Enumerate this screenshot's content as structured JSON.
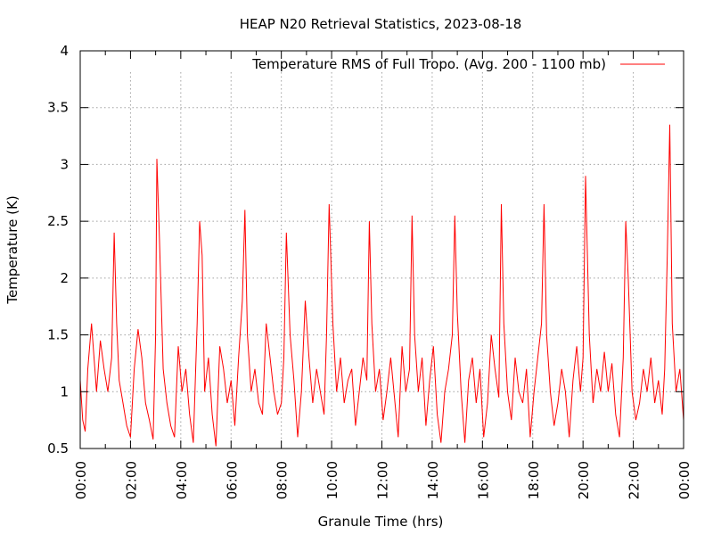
{
  "chart_data": {
    "type": "line",
    "title": "HEAP N20 Retrieval Statistics, 2023-08-18",
    "xlabel": "Granule Time (hrs)",
    "ylabel": "Temperature (K)",
    "xlim": [
      0,
      24
    ],
    "ylim": [
      0.5,
      4
    ],
    "x_ticks": [
      "00:00",
      "02:00",
      "04:00",
      "06:00",
      "08:00",
      "10:00",
      "12:00",
      "14:00",
      "16:00",
      "18:00",
      "20:00",
      "22:00",
      "00:00"
    ],
    "y_ticks": [
      "0.5",
      "1",
      "1.5",
      "2",
      "2.5",
      "3",
      "3.5",
      "4"
    ],
    "grid": true,
    "legend_position": "top-right",
    "series": [
      {
        "name": "Temperature RMS of Full Tropo. (Avg. 200 - 1100 mb)",
        "color": "#ff0000",
        "x": [
          0.0,
          0.1,
          0.2,
          0.3,
          0.45,
          0.55,
          0.65,
          0.8,
          0.95,
          1.1,
          1.25,
          1.35,
          1.45,
          1.55,
          1.7,
          1.85,
          2.0,
          2.15,
          2.3,
          2.45,
          2.6,
          2.75,
          2.9,
          3.0,
          3.05,
          3.15,
          3.3,
          3.45,
          3.6,
          3.75,
          3.9,
          4.05,
          4.2,
          4.35,
          4.5,
          4.65,
          4.75,
          4.85,
          4.95,
          5.1,
          5.25,
          5.4,
          5.55,
          5.7,
          5.85,
          6.0,
          6.15,
          6.3,
          6.45,
          6.55,
          6.65,
          6.8,
          6.95,
          7.1,
          7.25,
          7.4,
          7.55,
          7.7,
          7.85,
          8.0,
          8.1,
          8.2,
          8.35,
          8.5,
          8.65,
          8.8,
          8.95,
          9.1,
          9.25,
          9.4,
          9.55,
          9.7,
          9.8,
          9.9,
          10.05,
          10.2,
          10.35,
          10.5,
          10.65,
          10.8,
          10.95,
          11.1,
          11.25,
          11.4,
          11.5,
          11.6,
          11.75,
          11.9,
          12.05,
          12.2,
          12.35,
          12.5,
          12.65,
          12.8,
          12.95,
          13.1,
          13.2,
          13.3,
          13.45,
          13.6,
          13.75,
          13.9,
          14.05,
          14.2,
          14.35,
          14.5,
          14.65,
          14.8,
          14.9,
          15.0,
          15.15,
          15.3,
          15.45,
          15.6,
          15.75,
          15.9,
          16.05,
          16.2,
          16.35,
          16.5,
          16.65,
          16.75,
          16.85,
          17.0,
          17.15,
          17.3,
          17.45,
          17.6,
          17.75,
          17.9,
          18.05,
          18.2,
          18.35,
          18.45,
          18.55,
          18.7,
          18.85,
          19.0,
          19.15,
          19.3,
          19.45,
          19.6,
          19.75,
          19.9,
          20.0,
          20.1,
          20.25,
          20.4,
          20.55,
          20.7,
          20.85,
          21.0,
          21.15,
          21.3,
          21.45,
          21.6,
          21.7,
          21.8,
          21.95,
          22.1,
          22.25,
          22.4,
          22.55,
          22.7,
          22.85,
          23.0,
          23.15,
          23.25,
          23.35,
          23.45,
          23.55,
          23.7,
          23.85,
          24.0
        ],
        "values": [
          1.1,
          0.75,
          0.65,
          1.2,
          1.6,
          1.3,
          1.0,
          1.45,
          1.2,
          1.0,
          1.3,
          2.4,
          1.6,
          1.1,
          0.9,
          0.7,
          0.6,
          1.2,
          1.55,
          1.3,
          0.9,
          0.75,
          0.58,
          1.5,
          3.05,
          2.35,
          1.2,
          0.9,
          0.7,
          0.6,
          1.4,
          1.0,
          1.2,
          0.8,
          0.55,
          1.6,
          2.5,
          2.2,
          1.0,
          1.3,
          0.8,
          0.52,
          1.4,
          1.2,
          0.9,
          1.1,
          0.7,
          1.3,
          1.8,
          2.6,
          1.5,
          1.0,
          1.2,
          0.9,
          0.8,
          1.6,
          1.3,
          1.0,
          0.8,
          0.9,
          1.3,
          2.4,
          1.5,
          1.1,
          0.6,
          1.0,
          1.8,
          1.3,
          0.9,
          1.2,
          1.0,
          0.8,
          1.5,
          2.65,
          1.6,
          1.0,
          1.3,
          0.9,
          1.1,
          1.2,
          0.7,
          1.0,
          1.3,
          1.1,
          2.5,
          1.6,
          1.0,
          1.2,
          0.75,
          1.0,
          1.3,
          0.95,
          0.6,
          1.4,
          1.0,
          1.2,
          2.55,
          1.5,
          1.0,
          1.3,
          0.7,
          1.1,
          1.4,
          0.8,
          0.55,
          1.0,
          1.2,
          1.5,
          2.55,
          1.7,
          1.0,
          0.55,
          1.1,
          1.3,
          0.9,
          1.2,
          0.6,
          0.9,
          1.5,
          1.2,
          0.95,
          2.65,
          1.6,
          1.0,
          0.75,
          1.3,
          1.0,
          0.9,
          1.2,
          0.6,
          1.0,
          1.3,
          1.6,
          2.65,
          1.5,
          1.0,
          0.7,
          0.9,
          1.2,
          1.0,
          0.6,
          1.1,
          1.4,
          1.0,
          1.3,
          2.9,
          1.5,
          0.9,
          1.2,
          1.0,
          1.35,
          1.0,
          1.25,
          0.8,
          0.6,
          1.3,
          2.5,
          2.0,
          1.0,
          0.75,
          0.9,
          1.2,
          1.0,
          1.3,
          0.9,
          1.1,
          0.8,
          1.2,
          2.2,
          3.35,
          1.6,
          1.0,
          1.2,
          0.75
        ]
      }
    ]
  }
}
